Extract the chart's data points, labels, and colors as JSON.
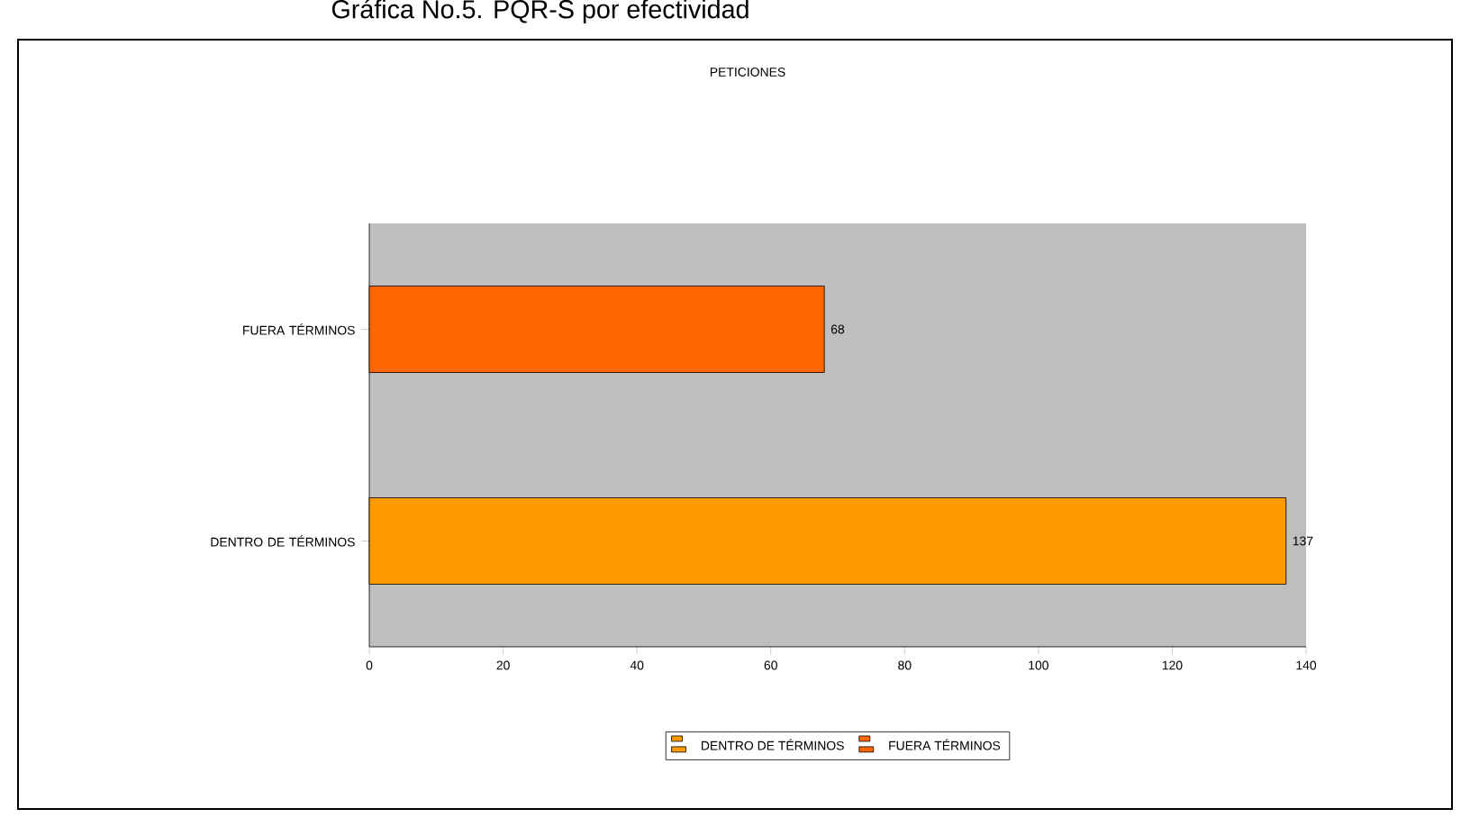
{
  "chart_data": {
    "type": "bar",
    "orientation": "horizontal",
    "title": "Gráfica No.5. PQR-S por efectividad",
    "subtitle": "PETICIONES",
    "categories": [
      "FUERA TÉRMINOS",
      "DENTRO DE TÉRMINOS"
    ],
    "series": [
      {
        "name": "DENTRO DE TÉRMINOS",
        "color": "#ff9900",
        "values": [
          null,
          137
        ]
      },
      {
        "name": "FUERA TÉRMINOS",
        "color": "#ff6600",
        "values": [
          68,
          null
        ]
      }
    ],
    "xlim": [
      0,
      140
    ],
    "xticks": [
      0,
      20,
      40,
      60,
      80,
      100,
      120,
      140
    ],
    "data_labels": true,
    "legend": "bottom",
    "grid": false
  }
}
